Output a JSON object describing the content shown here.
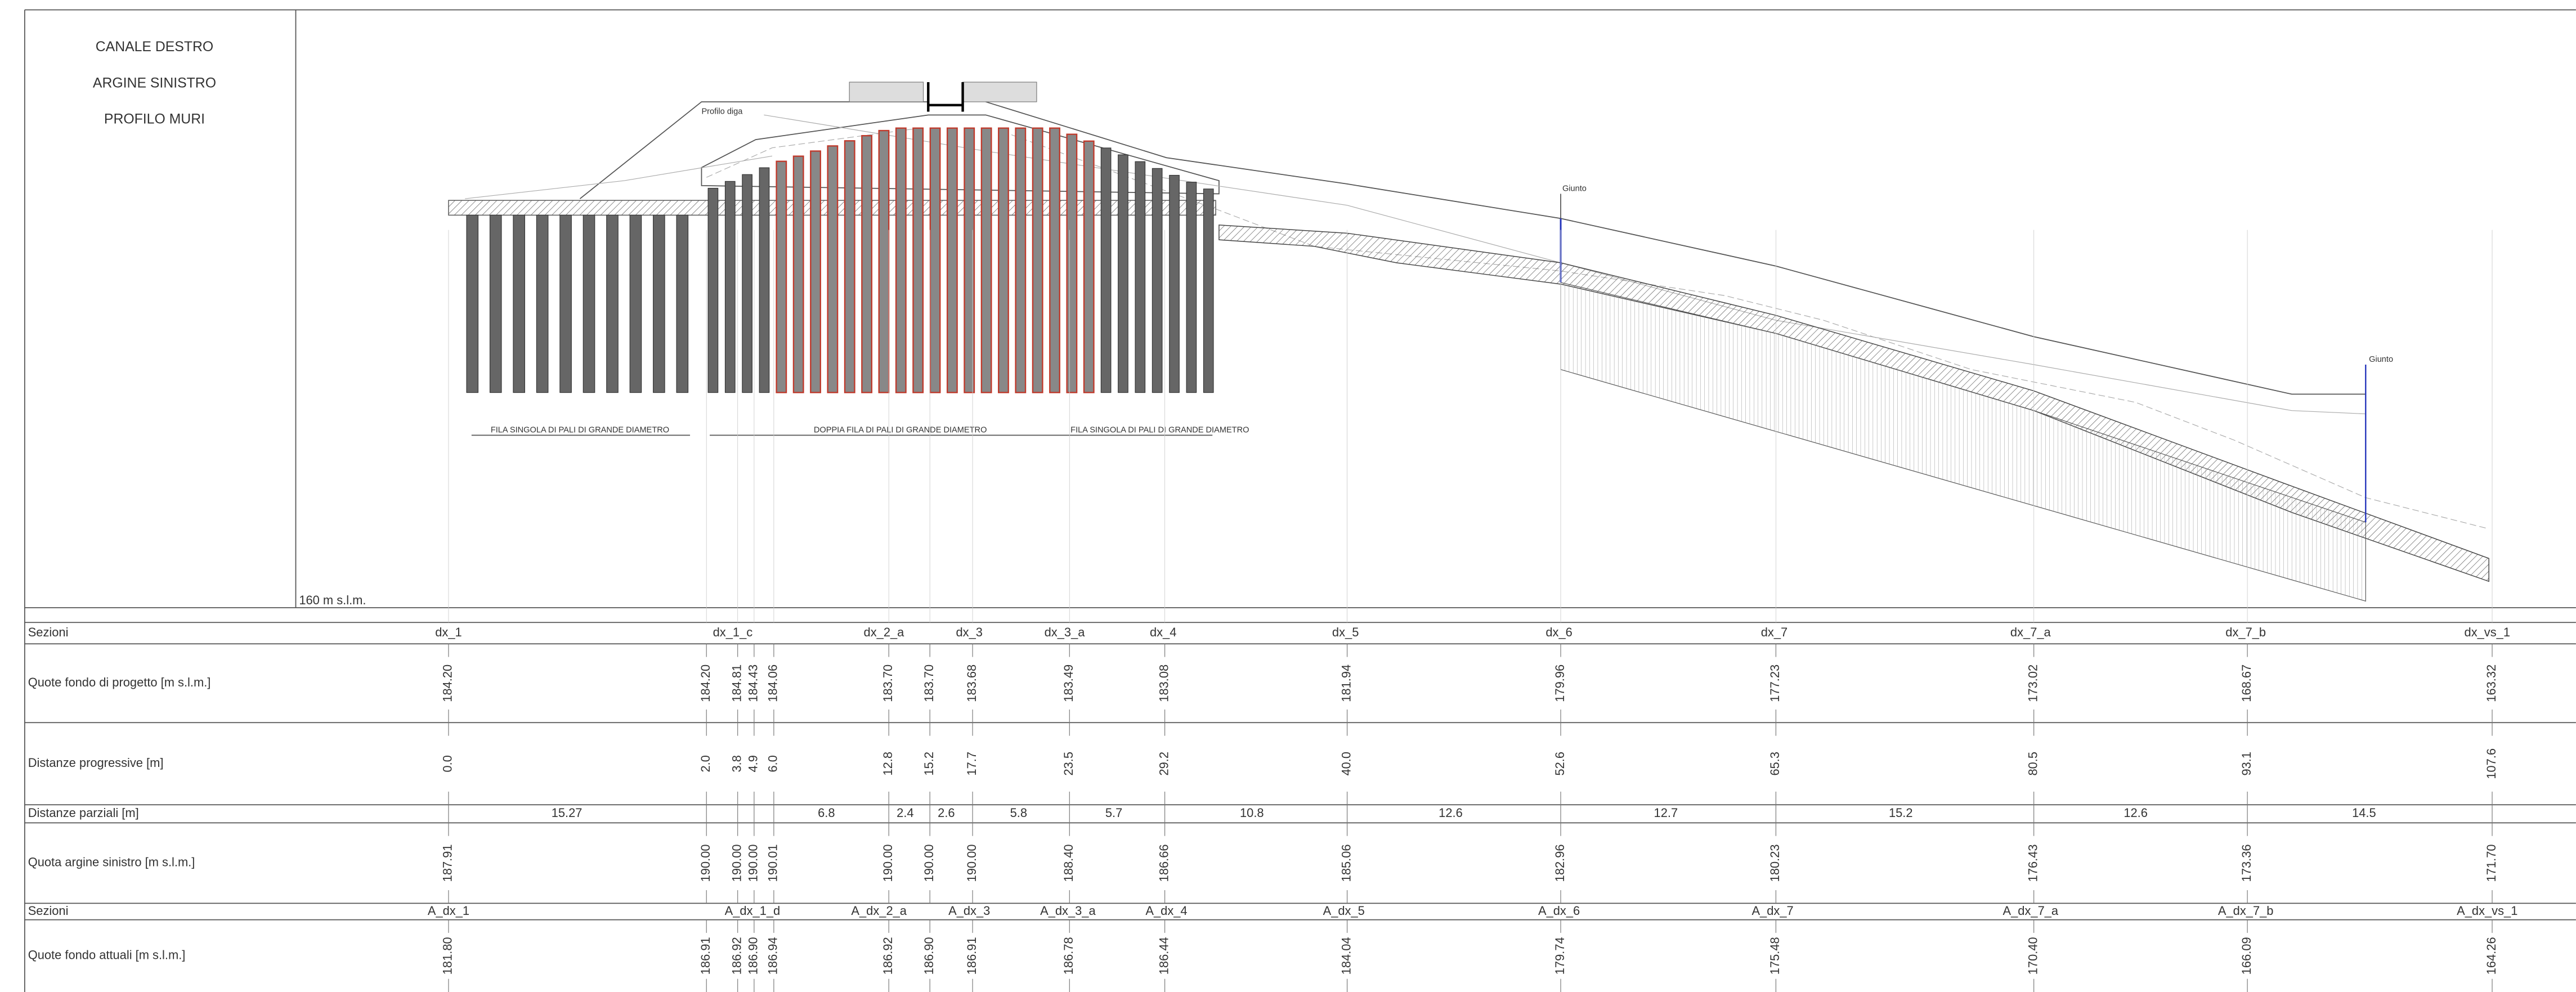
{
  "header": {
    "lines": [
      "CANALE DESTRO",
      "ARGINE SINISTRO",
      "PROFILO MURI"
    ]
  },
  "drawing": {
    "profile_label": "Profilo diga",
    "joint_labels": [
      "Giunto",
      "Giunto"
    ],
    "pile_notes": [
      "FILA SINGOLA DI PALI DI GRANDE DIAMETRO",
      "DOPPIA FILA DI PALI DI GRANDE DIAMETRO",
      "FILA SINGOLA DI PALI DI GRANDE DIAMETRO"
    ],
    "datum": "160 m s.l.m."
  },
  "table": {
    "rows": [
      {
        "label": "Sezioni",
        "cells": [
          "dx_1",
          "dx_1_c",
          "dx_2_a",
          "dx_3",
          "dx_3_a",
          "dx_4",
          "dx_5",
          "dx_6",
          "dx_7",
          "dx_7_a",
          "dx_7_b",
          "dx_vs_1"
        ]
      },
      {
        "label": "Quote fondo di progetto [m s.l.m.]",
        "cells": [
          "184.20",
          "184.20",
          "184.81",
          "184.43",
          "184.06",
          "183.70",
          "183.70",
          "183.68",
          "183.49",
          "183.08",
          "181.94",
          "179.96",
          "177.23",
          "173.02",
          "168.67",
          "163.32"
        ]
      },
      {
        "label": "Distanze progressive [m]",
        "cells": [
          "0.0",
          "2.0",
          "3.8",
          "4.9",
          "6.0",
          "12.8",
          "15.2",
          "17.7",
          "23.5",
          "29.2",
          "40.0",
          "52.6",
          "65.3",
          "80.5",
          "93.1",
          "107.6"
        ]
      },
      {
        "label": "Distanze parziali [m]",
        "cells": [
          "15.27",
          "6.8",
          "2.4",
          "2.6",
          "5.8",
          "5.7",
          "10.8",
          "12.6",
          "12.7",
          "15.2",
          "12.6",
          "14.5"
        ]
      },
      {
        "label": "Quota argine sinistro [m s.l.m.]",
        "cells": [
          "187.91",
          "190.00",
          "190.00",
          "190.00",
          "190.01",
          "190.00",
          "190.00",
          "190.00",
          "188.40",
          "186.66",
          "185.06",
          "182.96",
          "180.23",
          "176.43",
          "173.36",
          "171.70"
        ]
      },
      {
        "label": "Sezioni",
        "cells": [
          "A_dx_1",
          "A_dx_1_d",
          "A_dx_2_a",
          "A_dx_3",
          "A_dx_3_a",
          "A_dx_4",
          "A_dx_5",
          "A_dx_6",
          "A_dx_7",
          "A_dx_7_a",
          "A_dx_7_b",
          "A_dx_vs_1"
        ]
      },
      {
        "label": "Quote fondo attuali [m s.l.m.]",
        "cells": [
          "181.80",
          "186.91",
          "186.92",
          "186.90",
          "186.94",
          "186.92",
          "186.90",
          "186.91",
          "186.78",
          "186.44",
          "184.04",
          "179.74",
          "175.48",
          "170.40",
          "166.09",
          "164.26"
        ]
      }
    ]
  }
}
